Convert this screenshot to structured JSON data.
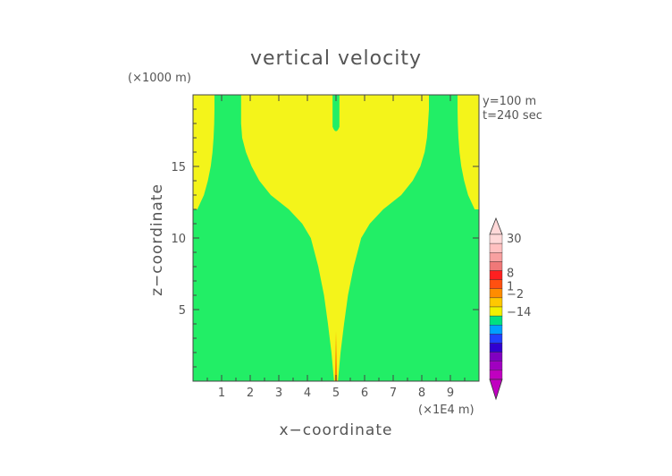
{
  "chart_data": {
    "type": "heatmap",
    "title": "vertical velocity",
    "xlabel": "x−coordinate",
    "ylabel": "z−coordinate",
    "x_unit": "(×1E4 m)",
    "y_unit": "(×1000 m)",
    "annotations": [
      "y=100 m",
      "t=240 sec"
    ],
    "xlim": [
      0,
      10
    ],
    "ylim": [
      0,
      20
    ],
    "x_ticks": [
      1,
      2,
      3,
      4,
      5,
      6,
      7,
      8,
      9
    ],
    "y_ticks": [
      5,
      10,
      15
    ],
    "colorbar": {
      "tick_labels": [
        "30",
        "8",
        "1",
        "−2",
        "−14"
      ],
      "segments": [
        {
          "color": "#ffd8d8"
        },
        {
          "color": "#ffc0c0"
        },
        {
          "color": "#f8a0a0"
        },
        {
          "color": "#f07878"
        },
        {
          "color": "#ff2020"
        },
        {
          "color": "#ff5010"
        },
        {
          "color": "#ff8c00"
        },
        {
          "color": "#ffc800"
        },
        {
          "color": "#f0f000"
        },
        {
          "color": "#00e080"
        },
        {
          "color": "#00a0ff"
        },
        {
          "color": "#2040ff"
        },
        {
          "color": "#3000d0"
        },
        {
          "color": "#8000c0"
        },
        {
          "color": "#a000c0"
        },
        {
          "color": "#c000c0"
        }
      ]
    },
    "regions": [
      {
        "label": "-2 to 0",
        "color": "#22ee66"
      },
      {
        "label": "0 to 1",
        "color": "#f4f41a"
      },
      {
        "label": "1 to 8",
        "color": "#ff8c00"
      }
    ],
    "updraft_boundary": {
      "z": [
        0,
        2,
        4,
        6,
        8,
        10,
        11,
        12,
        13,
        14,
        15,
        16,
        17,
        18,
        19,
        20
      ],
      "x_left": [
        4.93,
        4.84,
        4.72,
        4.58,
        4.38,
        4.12,
        3.82,
        3.35,
        2.72,
        2.32,
        2.05,
        1.85,
        1.72,
        1.68,
        1.68,
        1.68
      ],
      "x_right": [
        5.07,
        5.16,
        5.28,
        5.42,
        5.62,
        5.88,
        6.18,
        6.65,
        7.28,
        7.68,
        7.95,
        8.1,
        8.18,
        8.22,
        8.25,
        8.25
      ]
    },
    "left_edge_region": {
      "z": [
        12,
        13,
        14,
        15,
        16,
        17,
        18,
        19,
        20
      ],
      "x": [
        0.15,
        0.38,
        0.52,
        0.62,
        0.68,
        0.72,
        0.74,
        0.75,
        0.75
      ]
    },
    "right_edge_region": {
      "z": [
        12,
        13,
        14,
        15,
        16,
        17,
        18,
        19,
        20
      ],
      "x": [
        9.85,
        9.62,
        9.48,
        9.38,
        9.32,
        9.28,
        9.26,
        9.25,
        9.25
      ]
    },
    "central_downdraft": {
      "x_center": 5.0,
      "half_width": 0.12,
      "z_bottom": 17.4,
      "z_top": 20
    },
    "surface_core": {
      "x_center": 5.0,
      "half_width": 0.04,
      "z_top": 3.5
    }
  }
}
